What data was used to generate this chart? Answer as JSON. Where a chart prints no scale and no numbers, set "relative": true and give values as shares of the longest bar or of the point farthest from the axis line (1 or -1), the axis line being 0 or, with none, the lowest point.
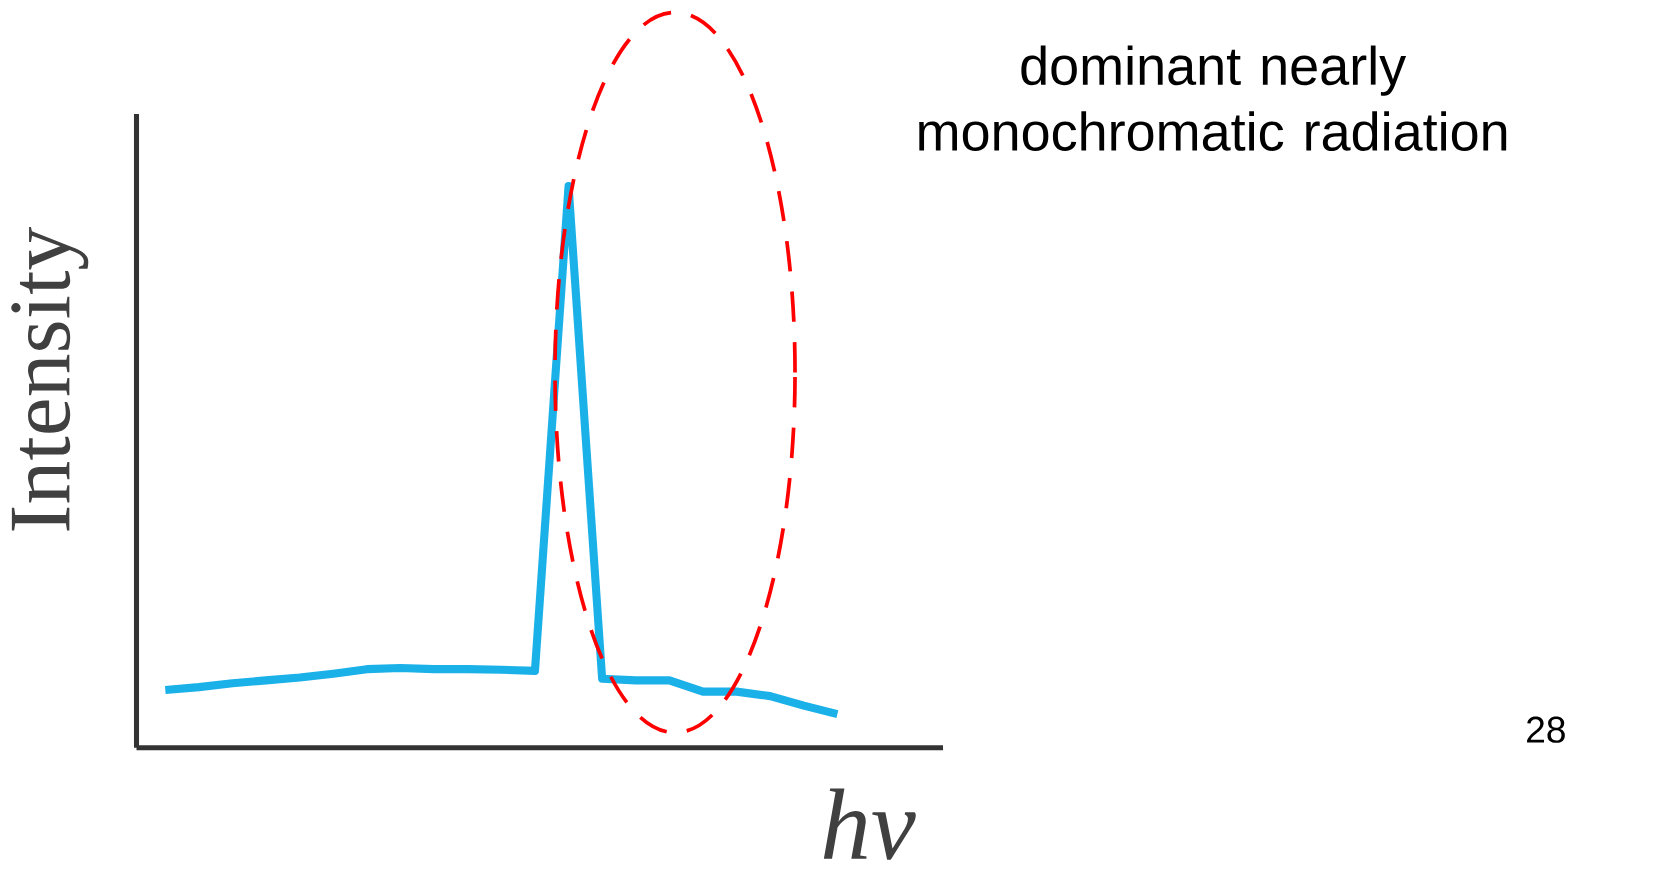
{
  "chart_data": {
    "type": "line",
    "relative": true,
    "xlabel": "hν",
    "ylabel": "Intensity",
    "categories": [
      null,
      null,
      null,
      null,
      null,
      null,
      null,
      null,
      null,
      null,
      null,
      null,
      null,
      null,
      null,
      null,
      null,
      null,
      null,
      null,
      null
    ],
    "values": [
      0.103,
      0.108,
      0.115,
      0.12,
      0.125,
      0.132,
      0.14,
      0.142,
      0.14,
      0.14,
      0.139,
      0.137,
      1,
      0.123,
      0.12,
      0.12,
      0.1,
      0.1,
      0.092,
      0.075,
      0.06
    ],
    "color": "#1ab0e8",
    "annotations": [
      "dominant nearly monochromatic radiation",
      "28"
    ]
  }
}
